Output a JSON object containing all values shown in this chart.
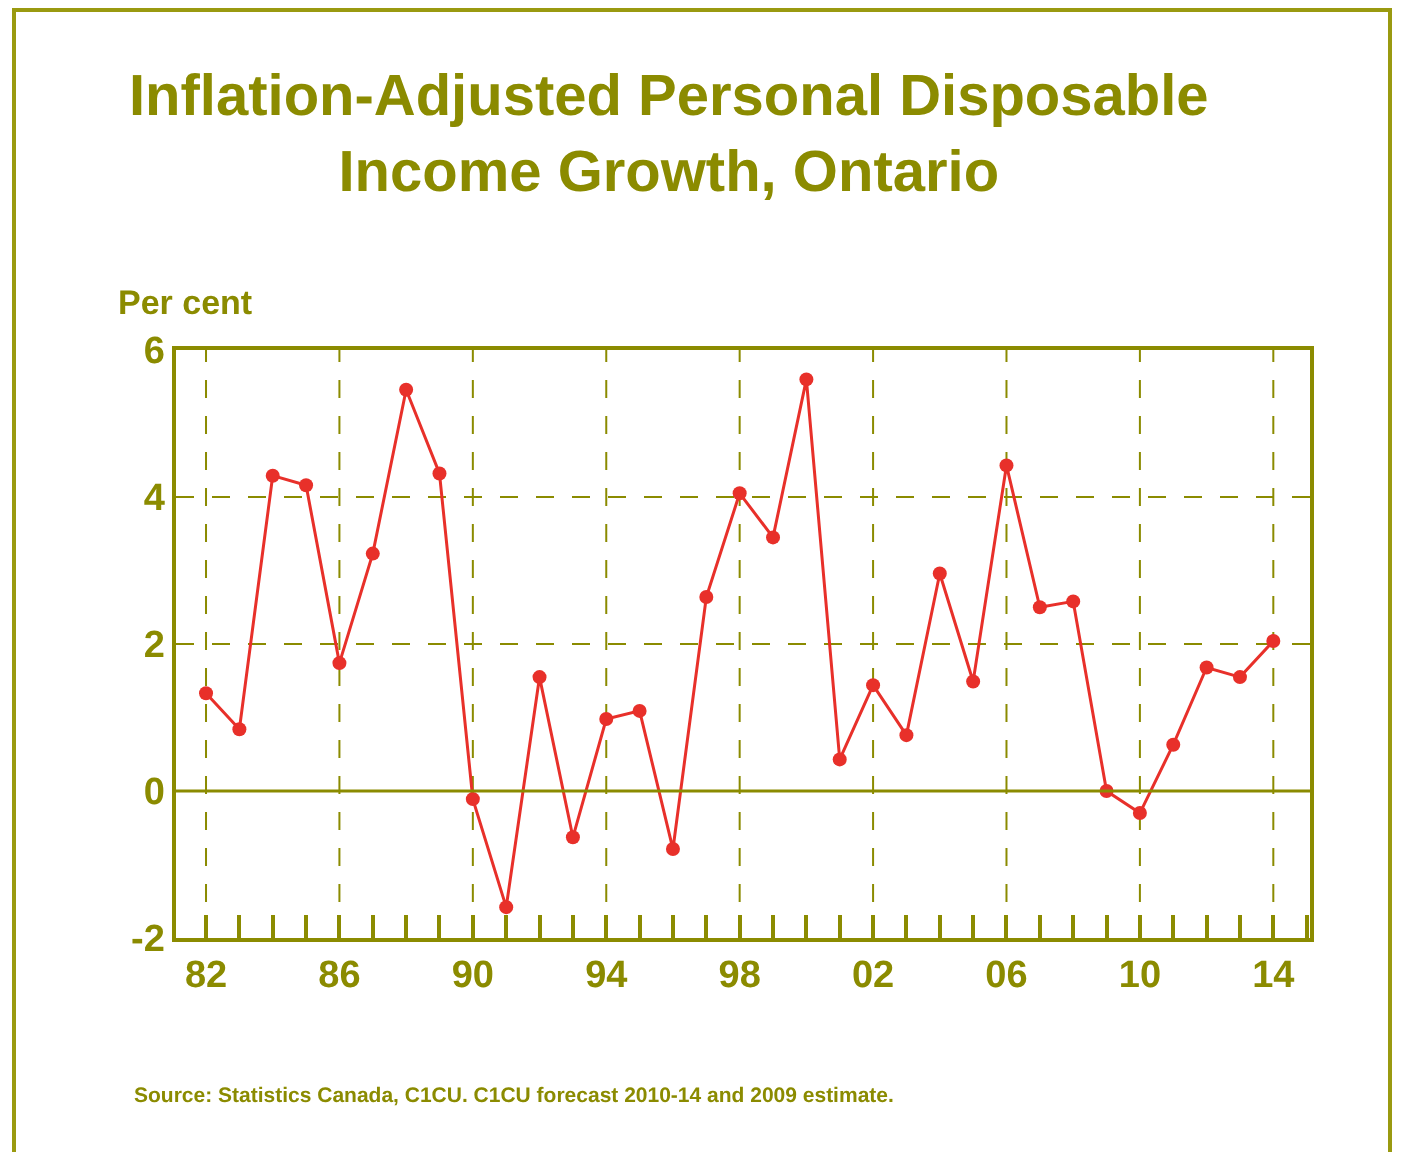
{
  "chart_data": {
    "type": "line",
    "title": "Inflation-Adjusted Personal Disposable\nIncome Growth, Ontario",
    "ylabel": "Per cent",
    "annotations": [
      "Source: Statistics Canada, C1CU. C1CU forecast 2010-14 and 2009 estimate."
    ],
    "x": [
      1982,
      1983,
      1984,
      1985,
      1986,
      1987,
      1988,
      1989,
      1990,
      1991,
      1992,
      1993,
      1994,
      1995,
      1996,
      1997,
      1998,
      1999,
      2000,
      2001,
      2002,
      2003,
      2004,
      2005,
      2006,
      2007,
      2008,
      2009,
      2010,
      2011,
      2012,
      2013,
      2014
    ],
    "series": [
      {
        "color": "#e8302a",
        "values": [
          1.33,
          0.84,
          4.29,
          4.16,
          1.74,
          3.23,
          5.46,
          4.32,
          -0.11,
          -1.58,
          1.55,
          -0.63,
          0.98,
          1.09,
          -0.79,
          2.64,
          4.05,
          3.45,
          5.6,
          0.43,
          1.44,
          0.76,
          2.96,
          1.49,
          4.43,
          2.5,
          2.58,
          0.0,
          -0.3,
          0.63,
          1.68,
          1.55,
          2.04
        ]
      }
    ],
    "xlim": [
      1981.1,
      2015.1
    ],
    "ylim": [
      -2,
      6
    ],
    "xticks": [
      {
        "value": 1982,
        "label": "82"
      },
      {
        "value": 1983,
        "label": null
      },
      {
        "value": 1984,
        "label": null
      },
      {
        "value": 1985,
        "label": null
      },
      {
        "value": 1986,
        "label": "86"
      },
      {
        "value": 1987,
        "label": null
      },
      {
        "value": 1988,
        "label": null
      },
      {
        "value": 1989,
        "label": null
      },
      {
        "value": 1990,
        "label": "90"
      },
      {
        "value": 1991,
        "label": null
      },
      {
        "value": 1992,
        "label": null
      },
      {
        "value": 1993,
        "label": null
      },
      {
        "value": 1994,
        "label": "94"
      },
      {
        "value": 1995,
        "label": null
      },
      {
        "value": 1996,
        "label": null
      },
      {
        "value": 1997,
        "label": null
      },
      {
        "value": 1998,
        "label": "98"
      },
      {
        "value": 1999,
        "label": null
      },
      {
        "value": 2000,
        "label": null
      },
      {
        "value": 2001,
        "label": null
      },
      {
        "value": 2002,
        "label": "02"
      },
      {
        "value": 2003,
        "label": null
      },
      {
        "value": 2004,
        "label": null
      },
      {
        "value": 2005,
        "label": null
      },
      {
        "value": 2006,
        "label": "06"
      },
      {
        "value": 2007,
        "label": null
      },
      {
        "value": 2008,
        "label": null
      },
      {
        "value": 2009,
        "label": null
      },
      {
        "value": 2010,
        "label": "10"
      },
      {
        "value": 2011,
        "label": null
      },
      {
        "value": 2012,
        "label": null
      },
      {
        "value": 2013,
        "label": null
      },
      {
        "value": 2014,
        "label": "14"
      },
      {
        "value": 2015,
        "label": null
      }
    ],
    "yticks": [
      -2,
      0,
      2,
      4,
      6
    ],
    "ref_lines": [
      {
        "axis": "y",
        "value": 0,
        "color": "#8b8b00"
      }
    ],
    "grid": true,
    "marker": "circle",
    "line_style": "solid"
  }
}
